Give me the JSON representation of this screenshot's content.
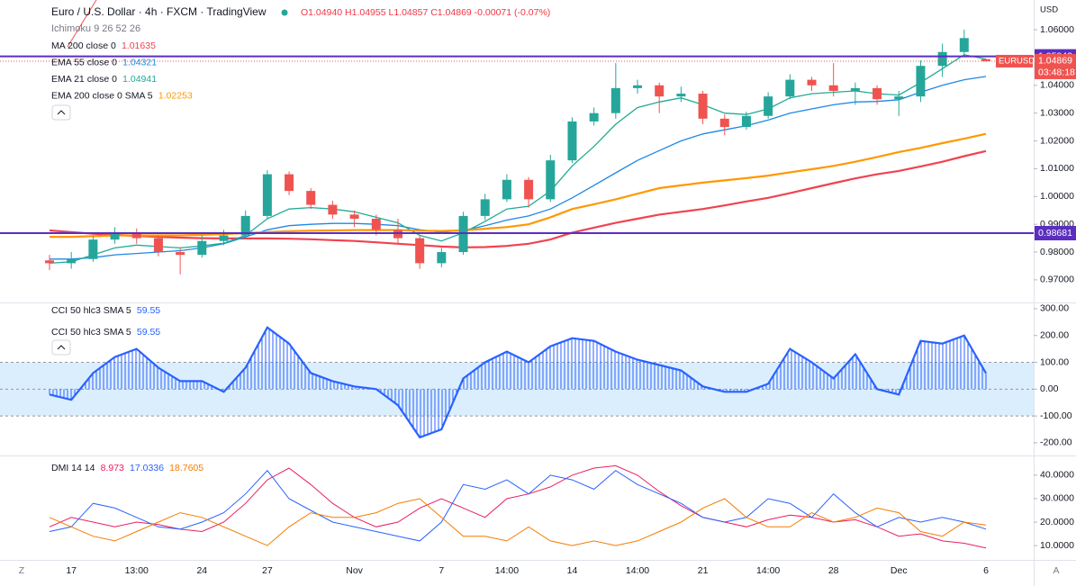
{
  "toolbar": [
    "Z",
    "A"
  ],
  "chart_data": [
    {
      "type": "candlestick",
      "title": "Euro / U.S. Dollar · 4h · FXCM · TradingView",
      "ohlc_text": "O1.04940 H1.04955 L1.04857 C1.04869 -0.00071 (-0.07%)",
      "study": "Ichimoku 9 26 52 26",
      "symbol": "EURUSD",
      "countdown": "03:48:18",
      "currency": "USD",
      "up_color": "#26a69a",
      "down_color": "#ef5350",
      "categories": [
        null,
        "17",
        null,
        null,
        "13:00",
        null,
        null,
        "24",
        null,
        null,
        "27",
        null,
        null,
        null,
        "Nov",
        null,
        null,
        null,
        "7",
        null,
        null,
        "14:00",
        null,
        null,
        "14",
        null,
        null,
        "14:00",
        null,
        null,
        "21",
        null,
        null,
        "14:00",
        null,
        null,
        "28",
        null,
        null,
        "Dec",
        null,
        null,
        null,
        "6"
      ],
      "open": [
        0.977,
        0.976,
        0.9775,
        0.9845,
        0.987,
        0.985,
        0.98,
        0.979,
        0.984,
        0.986,
        0.993,
        1.008,
        1.002,
        0.997,
        0.9935,
        0.992,
        0.988,
        0.985,
        0.976,
        0.98,
        0.993,
        0.999,
        1.006,
        0.999,
        1.013,
        1.027,
        1.03,
        1.039,
        1.04,
        1.036,
        1.037,
        1.028,
        1.025,
        1.029,
        1.036,
        1.042,
        1.04,
        1.038,
        1.039,
        1.035,
        1.036,
        1.047,
        1.052,
        1.0494
      ],
      "high": [
        0.979,
        0.98,
        0.986,
        0.989,
        0.9885,
        0.986,
        0.9815,
        0.986,
        0.988,
        0.995,
        1.0095,
        1.009,
        1.003,
        0.9985,
        0.995,
        0.9935,
        0.992,
        0.986,
        0.9815,
        0.9945,
        1.001,
        1.008,
        1.007,
        1.015,
        1.0285,
        1.032,
        1.048,
        1.042,
        1.041,
        1.0395,
        1.038,
        1.0295,
        1.0305,
        1.0375,
        1.044,
        1.043,
        1.048,
        1.041,
        1.04,
        1.038,
        1.049,
        1.055,
        1.06,
        1.04955
      ],
      "low": [
        0.9735,
        0.974,
        0.9765,
        0.983,
        0.983,
        0.9785,
        0.972,
        0.978,
        0.9825,
        0.985,
        0.992,
        1.0005,
        0.9955,
        0.992,
        0.989,
        0.986,
        0.983,
        0.974,
        0.9745,
        0.979,
        0.9915,
        0.998,
        0.996,
        0.998,
        1.012,
        1.0255,
        1.028,
        1.037,
        1.03,
        1.034,
        1.026,
        1.022,
        1.024,
        1.028,
        1.035,
        1.038,
        1.036,
        1.033,
        1.033,
        1.029,
        1.034,
        1.043,
        1.0505,
        1.04857
      ],
      "close": [
        0.976,
        0.9775,
        0.9845,
        0.987,
        0.985,
        0.98,
        0.979,
        0.984,
        0.986,
        0.993,
        1.008,
        1.002,
        0.997,
        0.9935,
        0.992,
        0.988,
        0.985,
        0.976,
        0.98,
        0.993,
        0.999,
        1.006,
        0.999,
        1.013,
        1.027,
        1.03,
        1.039,
        1.04,
        1.036,
        1.037,
        1.028,
        1.025,
        1.029,
        1.036,
        1.042,
        1.04,
        1.038,
        1.039,
        1.035,
        1.036,
        1.047,
        1.052,
        1.057,
        1.04869
      ],
      "series": [
        {
          "name": "MA 200 close 0",
          "color": "#f0434f",
          "values": [
            0.9878,
            0.9872,
            0.9866,
            0.9862,
            0.9858,
            0.9855,
            0.9852,
            0.985,
            0.9849,
            0.9849,
            0.9849,
            0.9848,
            0.9846,
            0.9843,
            0.984,
            0.9835,
            0.983,
            0.9825,
            0.982,
            0.9817,
            0.9818,
            0.9822,
            0.983,
            0.9845,
            0.987,
            0.9888,
            0.9905,
            0.992,
            0.9935,
            0.9945,
            0.9955,
            0.9968,
            0.9982,
            0.9995,
            1.0012,
            1.003,
            1.0048,
            1.0065,
            1.008,
            1.0092,
            1.0108,
            1.0125,
            1.0145,
            1.01635
          ]
        },
        {
          "name": "EMA 55 close 0",
          "color": "#1e88e5",
          "values": [
            0.9775,
            0.9775,
            0.978,
            0.979,
            0.9795,
            0.98,
            0.9805,
            0.9815,
            0.983,
            0.9855,
            0.988,
            0.9895,
            0.99,
            0.9903,
            0.9903,
            0.99,
            0.9895,
            0.988,
            0.9872,
            0.9878,
            0.9895,
            0.9915,
            0.993,
            0.9955,
            0.9995,
            1.004,
            1.0085,
            1.013,
            1.0165,
            1.02,
            1.0225,
            1.024,
            1.0255,
            1.0275,
            1.03,
            1.0315,
            1.033,
            1.034,
            1.0342,
            1.0348,
            1.0375,
            1.04,
            1.042,
            1.04321
          ]
        },
        {
          "name": "EMA 21 close 0",
          "color": "#22ab94",
          "values": [
            0.976,
            0.9765,
            0.979,
            0.9815,
            0.9825,
            0.982,
            0.9815,
            0.9822,
            0.9832,
            0.986,
            0.992,
            0.9955,
            0.996,
            0.9955,
            0.9945,
            0.9925,
            0.9905,
            0.986,
            0.984,
            0.987,
            0.991,
            0.9955,
            0.9965,
            1.002,
            1.011,
            1.018,
            1.026,
            1.032,
            1.034,
            1.0355,
            1.033,
            1.03,
            1.0295,
            1.0315,
            1.0355,
            1.037,
            1.0375,
            1.038,
            1.037,
            1.0365,
            1.041,
            1.046,
            1.051,
            1.04941
          ]
        },
        {
          "name": "EMA 200 close 0 SMA 5",
          "color": "#ff9800",
          "values": [
            0.9855,
            0.9855,
            0.9857,
            0.986,
            0.986,
            0.986,
            0.986,
            0.9862,
            0.9865,
            0.9868,
            0.9872,
            0.9875,
            0.9877,
            0.9878,
            0.9879,
            0.9879,
            0.9879,
            0.9877,
            0.9876,
            0.9878,
            0.9884,
            0.989,
            0.99,
            0.9925,
            0.9955,
            0.9972,
            0.999,
            1.001,
            1.003,
            1.004,
            1.005,
            1.0058,
            1.0066,
            1.0075,
            1.0087,
            1.0098,
            1.011,
            1.0125,
            1.0142,
            1.016,
            1.0175,
            1.0192,
            1.0208,
            1.02253
          ]
        }
      ],
      "hlines": [
        {
          "value": 1.05042,
          "color": "#5b2ec0"
        },
        {
          "value": 0.98681,
          "color": "#5b2ec0"
        }
      ],
      "ylim": [
        0.9622,
        1.0707
      ],
      "yticks": [
        {
          "value": 0.97,
          "label": "0.97000"
        },
        {
          "value": 0.98,
          "label": "0.98000"
        },
        {
          "value": 0.99,
          "label": "0.99000"
        },
        {
          "value": 1.0,
          "label": "1.00000"
        },
        {
          "value": 1.01,
          "label": "1.01000"
        },
        {
          "value": 1.02,
          "label": "1.02000"
        },
        {
          "value": 1.03,
          "label": "1.03000"
        },
        {
          "value": 1.04,
          "label": "1.04000"
        },
        {
          "value": 1.06,
          "label": "1.06000"
        }
      ],
      "grid": false
    },
    {
      "type": "cci",
      "series": [
        {
          "name": "CCI 50 hlc3 SMA 5",
          "color": "#2962ff",
          "values": [
            -20,
            -40,
            60,
            120,
            150,
            80,
            30,
            30,
            -10,
            80,
            230,
            170,
            60,
            30,
            10,
            0,
            -60,
            -180,
            -150,
            40,
            100,
            140,
            100,
            160,
            190,
            180,
            140,
            110,
            90,
            70,
            10,
            -10,
            -10,
            20,
            150,
            100,
            40,
            130,
            0,
            -20,
            180,
            170,
            200,
            59.55
          ]
        }
      ],
      "levels": [
        100,
        0,
        -100
      ],
      "band_color": "rgba(33,150,243,0.16)",
      "ylim": [
        -244,
        320
      ],
      "yticks": [
        {
          "value": 300,
          "label": "300.00"
        },
        {
          "value": 200,
          "label": "200.00"
        },
        {
          "value": 100,
          "label": "100.00"
        },
        {
          "value": 0,
          "label": "0.00"
        },
        {
          "value": -100,
          "label": "-100.00"
        },
        {
          "value": -200,
          "label": "-200.00"
        }
      ]
    },
    {
      "type": "line",
      "label": "DMI 14 14",
      "series": [
        {
          "color": "#e91e63",
          "values": [
            18,
            22,
            20,
            18,
            20,
            19,
            17,
            16,
            20,
            28,
            38,
            43,
            36,
            28,
            22,
            18,
            20,
            26,
            30,
            26,
            22,
            30,
            32,
            35,
            40,
            43,
            44,
            40,
            33,
            27,
            22,
            20,
            18,
            21,
            23,
            22,
            20,
            21,
            18,
            14,
            15,
            12,
            11,
            8.973
          ]
        },
        {
          "color": "#2962ff",
          "values": [
            16,
            18,
            28,
            26,
            22,
            18,
            17,
            20,
            24,
            32,
            42,
            30,
            25,
            20,
            18,
            16,
            14,
            12,
            20,
            36,
            34,
            38,
            32,
            40,
            38,
            34,
            42,
            36,
            32,
            28,
            22,
            20,
            22,
            30,
            28,
            22,
            32,
            24,
            18,
            22,
            20,
            22,
            20,
            17.0336
          ]
        },
        {
          "color": "#f57c00",
          "values": [
            22,
            18,
            14,
            12,
            16,
            20,
            24,
            22,
            18,
            14,
            10,
            18,
            24,
            22,
            22,
            24,
            28,
            30,
            22,
            14,
            14,
            12,
            18,
            12,
            10,
            12,
            10,
            12,
            16,
            20,
            26,
            30,
            22,
            18,
            18,
            24,
            20,
            22,
            26,
            24,
            16,
            14,
            20,
            18.7605
          ]
        }
      ],
      "ylim": [
        4.3,
        48
      ],
      "yticks": [
        {
          "value": 40,
          "label": "40.0000"
        },
        {
          "value": 30,
          "label": "30.0000"
        },
        {
          "value": 20,
          "label": "20.0000"
        },
        {
          "value": 10,
          "label": "10.0000"
        }
      ]
    }
  ]
}
